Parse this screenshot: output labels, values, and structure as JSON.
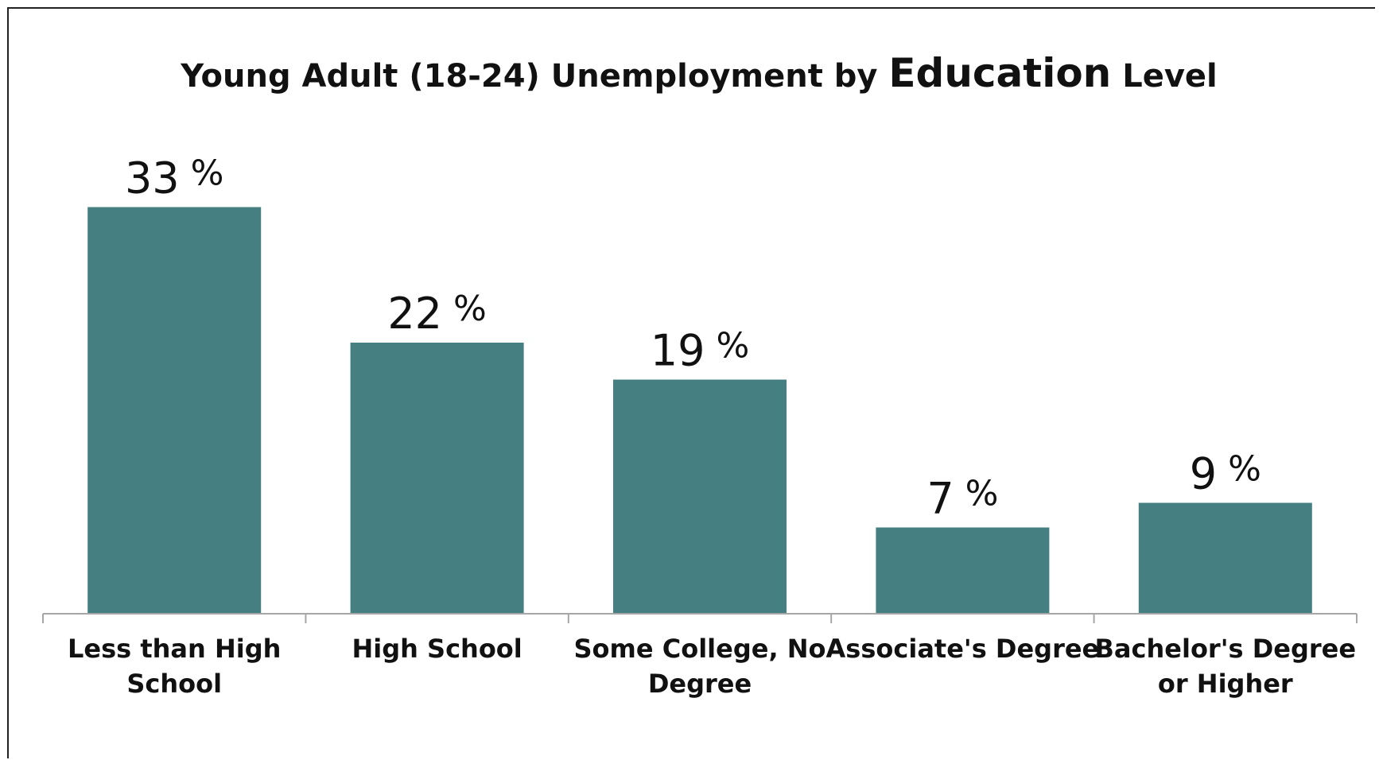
{
  "chart_data": {
    "type": "bar",
    "title": {
      "part1": "Young Adult (18-24)  Unemployment by ",
      "part2": "Education",
      "part3": " Level"
    },
    "categories": [
      [
        "Less than High",
        "School"
      ],
      [
        "High School"
      ],
      [
        "Some College, No",
        "Degree"
      ],
      [
        "Associate's Degree"
      ],
      [
        "Bachelor's Degree",
        "or Higher"
      ]
    ],
    "values": [
      33,
      22,
      19,
      7,
      9
    ],
    "value_labels": [
      "33",
      "22",
      "19",
      "7",
      "9"
    ],
    "value_suffix": " %",
    "ylim": [
      0,
      40
    ],
    "grid": false,
    "legend": "none",
    "bar_color": "#467f82",
    "axis_color": "#a6a6a6"
  }
}
